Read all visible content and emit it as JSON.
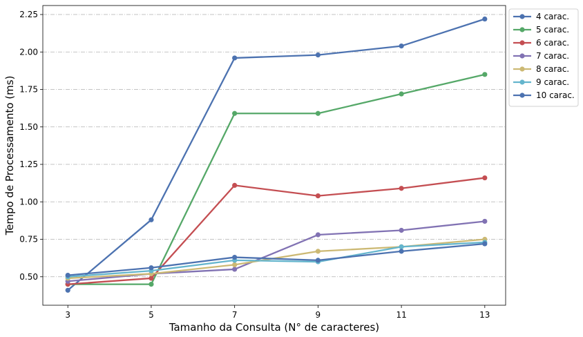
{
  "chart_data": {
    "type": "line",
    "xlabel": "Tamanho da Consulta (N° de caracteres)",
    "ylabel": "Tempo de Processamento (ms)",
    "x": [
      3,
      5,
      7,
      9,
      11,
      13
    ],
    "xticks": [
      "3",
      "5",
      "7",
      "9",
      "11",
      "13"
    ],
    "yticks": [
      "0.50",
      "0.75",
      "1.00",
      "1.25",
      "1.50",
      "1.75",
      "2.00",
      "2.25"
    ],
    "ylim": [
      0.31,
      2.31
    ],
    "xlim": [
      2.4,
      13.5
    ],
    "grid": "y-dashdot",
    "legend_position": "outside-right-top",
    "series": [
      {
        "name": "4 carac.",
        "color": "#4c72b0",
        "values": [
          0.41,
          0.88,
          1.96,
          1.98,
          2.04,
          2.22
        ]
      },
      {
        "name": "5 carac.",
        "color": "#55a868",
        "values": [
          0.45,
          0.45,
          1.59,
          1.59,
          1.72,
          1.85
        ]
      },
      {
        "name": "6 carac.",
        "color": "#c44e52",
        "values": [
          0.45,
          0.49,
          1.11,
          1.04,
          1.09,
          1.16
        ]
      },
      {
        "name": "7 carac.",
        "color": "#8172b3",
        "values": [
          0.47,
          0.52,
          0.55,
          0.78,
          0.81,
          0.87
        ]
      },
      {
        "name": "8 carac.",
        "color": "#ccb974",
        "values": [
          0.49,
          0.52,
          0.58,
          0.67,
          0.7,
          0.75
        ]
      },
      {
        "name": "9 carac.",
        "color": "#64b5cd",
        "values": [
          0.5,
          0.54,
          0.61,
          0.6,
          0.7,
          0.73
        ]
      },
      {
        "name": "10 carac.",
        "color": "#4c72b0",
        "values": [
          0.51,
          0.56,
          0.63,
          0.61,
          0.67,
          0.72
        ]
      }
    ]
  }
}
